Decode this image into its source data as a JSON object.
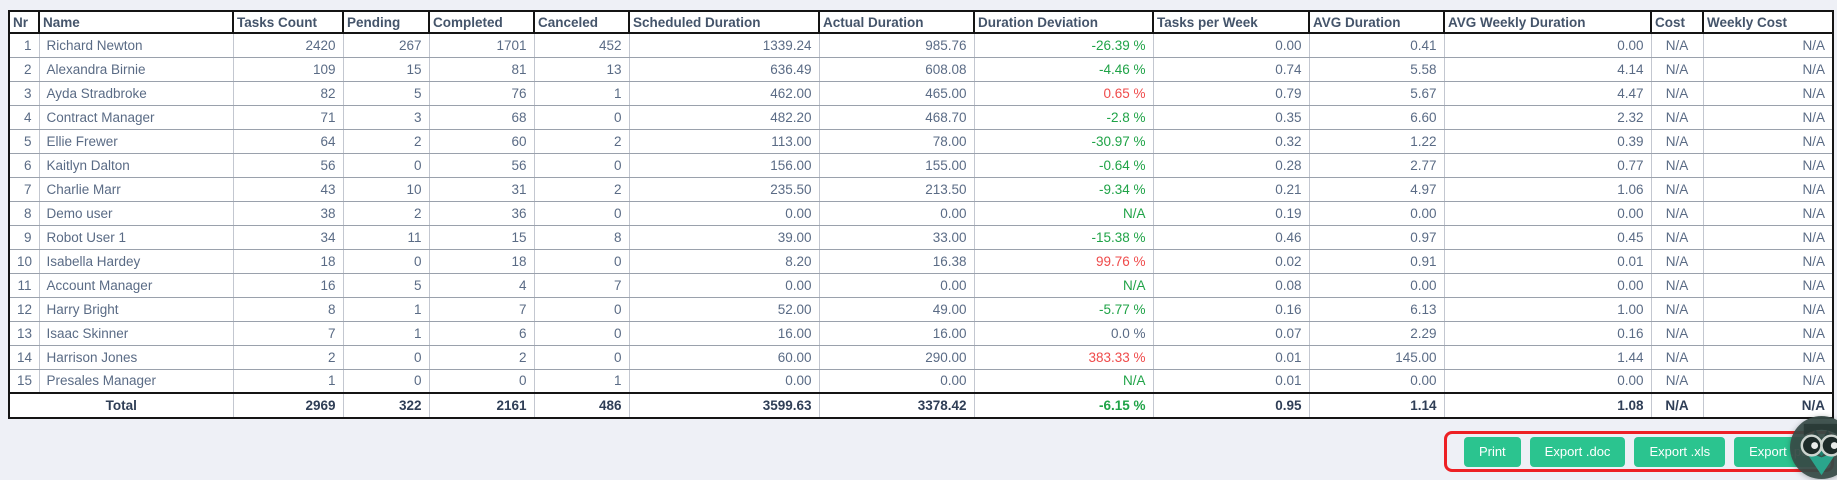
{
  "table": {
    "columns": [
      {
        "key": "nr",
        "label": "Nr",
        "align": "right"
      },
      {
        "key": "name",
        "label": "Name",
        "align": "left"
      },
      {
        "key": "tasks_count",
        "label": "Tasks Count",
        "align": "right"
      },
      {
        "key": "pending",
        "label": "Pending",
        "align": "right"
      },
      {
        "key": "completed",
        "label": "Completed",
        "align": "right"
      },
      {
        "key": "canceled",
        "label": "Canceled",
        "align": "right"
      },
      {
        "key": "scheduled_duration",
        "label": "Scheduled Duration",
        "align": "right"
      },
      {
        "key": "actual_duration",
        "label": "Actual Duration",
        "align": "right"
      },
      {
        "key": "duration_deviation",
        "label": "Duration Deviation",
        "align": "right"
      },
      {
        "key": "tasks_per_week",
        "label": "Tasks per Week",
        "align": "right"
      },
      {
        "key": "avg_duration",
        "label": "AVG Duration",
        "align": "right"
      },
      {
        "key": "avg_weekly_duration",
        "label": "AVG Weekly Duration",
        "align": "right"
      },
      {
        "key": "cost",
        "label": "Cost",
        "align": "center"
      },
      {
        "key": "weekly_cost",
        "label": "Weekly Cost",
        "align": "right"
      }
    ],
    "rows": [
      {
        "nr": "1",
        "name": "Richard Newton",
        "tasks_count": "2420",
        "pending": "267",
        "completed": "1701",
        "canceled": "452",
        "scheduled_duration": "1339.24",
        "actual_duration": "985.76",
        "duration_deviation": "-26.39 %",
        "deviation_color": "green",
        "tasks_per_week": "0.00",
        "avg_duration": "0.41",
        "avg_weekly_duration": "0.00",
        "cost": "N/A",
        "weekly_cost": "N/A"
      },
      {
        "nr": "2",
        "name": "Alexandra Birnie",
        "tasks_count": "109",
        "pending": "15",
        "completed": "81",
        "canceled": "13",
        "scheduled_duration": "636.49",
        "actual_duration": "608.08",
        "duration_deviation": "-4.46 %",
        "deviation_color": "green",
        "tasks_per_week": "0.74",
        "avg_duration": "5.58",
        "avg_weekly_duration": "4.14",
        "cost": "N/A",
        "weekly_cost": "N/A"
      },
      {
        "nr": "3",
        "name": "Ayda Stradbroke",
        "tasks_count": "82",
        "pending": "5",
        "completed": "76",
        "canceled": "1",
        "scheduled_duration": "462.00",
        "actual_duration": "465.00",
        "duration_deviation": "0.65 %",
        "deviation_color": "red",
        "tasks_per_week": "0.79",
        "avg_duration": "5.67",
        "avg_weekly_duration": "4.47",
        "cost": "N/A",
        "weekly_cost": "N/A"
      },
      {
        "nr": "4",
        "name": "Contract Manager",
        "tasks_count": "71",
        "pending": "3",
        "completed": "68",
        "canceled": "0",
        "scheduled_duration": "482.20",
        "actual_duration": "468.70",
        "duration_deviation": "-2.8 %",
        "deviation_color": "green",
        "tasks_per_week": "0.35",
        "avg_duration": "6.60",
        "avg_weekly_duration": "2.32",
        "cost": "N/A",
        "weekly_cost": "N/A"
      },
      {
        "nr": "5",
        "name": "Ellie Frewer",
        "tasks_count": "64",
        "pending": "2",
        "completed": "60",
        "canceled": "2",
        "scheduled_duration": "113.00",
        "actual_duration": "78.00",
        "duration_deviation": "-30.97 %",
        "deviation_color": "green",
        "tasks_per_week": "0.32",
        "avg_duration": "1.22",
        "avg_weekly_duration": "0.39",
        "cost": "N/A",
        "weekly_cost": "N/A"
      },
      {
        "nr": "6",
        "name": "Kaitlyn Dalton",
        "tasks_count": "56",
        "pending": "0",
        "completed": "56",
        "canceled": "0",
        "scheduled_duration": "156.00",
        "actual_duration": "155.00",
        "duration_deviation": "-0.64 %",
        "deviation_color": "green",
        "tasks_per_week": "0.28",
        "avg_duration": "2.77",
        "avg_weekly_duration": "0.77",
        "cost": "N/A",
        "weekly_cost": "N/A"
      },
      {
        "nr": "7",
        "name": "Charlie Marr",
        "tasks_count": "43",
        "pending": "10",
        "completed": "31",
        "canceled": "2",
        "scheduled_duration": "235.50",
        "actual_duration": "213.50",
        "duration_deviation": "-9.34 %",
        "deviation_color": "green",
        "tasks_per_week": "0.21",
        "avg_duration": "4.97",
        "avg_weekly_duration": "1.06",
        "cost": "N/A",
        "weekly_cost": "N/A"
      },
      {
        "nr": "8",
        "name": "Demo user",
        "tasks_count": "38",
        "pending": "2",
        "completed": "36",
        "canceled": "0",
        "scheduled_duration": "0.00",
        "actual_duration": "0.00",
        "duration_deviation": "N/A",
        "deviation_color": "green",
        "tasks_per_week": "0.19",
        "avg_duration": "0.00",
        "avg_weekly_duration": "0.00",
        "cost": "N/A",
        "weekly_cost": "N/A"
      },
      {
        "nr": "9",
        "name": "Robot User 1",
        "tasks_count": "34",
        "pending": "11",
        "completed": "15",
        "canceled": "8",
        "scheduled_duration": "39.00",
        "actual_duration": "33.00",
        "duration_deviation": "-15.38 %",
        "deviation_color": "green",
        "tasks_per_week": "0.46",
        "avg_duration": "0.97",
        "avg_weekly_duration": "0.45",
        "cost": "N/A",
        "weekly_cost": "N/A"
      },
      {
        "nr": "10",
        "name": "Isabella Hardey",
        "tasks_count": "18",
        "pending": "0",
        "completed": "18",
        "canceled": "0",
        "scheduled_duration": "8.20",
        "actual_duration": "16.38",
        "duration_deviation": "99.76 %",
        "deviation_color": "red",
        "tasks_per_week": "0.02",
        "avg_duration": "0.91",
        "avg_weekly_duration": "0.01",
        "cost": "N/A",
        "weekly_cost": "N/A"
      },
      {
        "nr": "11",
        "name": "Account Manager",
        "tasks_count": "16",
        "pending": "5",
        "completed": "4",
        "canceled": "7",
        "scheduled_duration": "0.00",
        "actual_duration": "0.00",
        "duration_deviation": "N/A",
        "deviation_color": "green",
        "tasks_per_week": "0.08",
        "avg_duration": "0.00",
        "avg_weekly_duration": "0.00",
        "cost": "N/A",
        "weekly_cost": "N/A"
      },
      {
        "nr": "12",
        "name": "Harry Bright",
        "tasks_count": "8",
        "pending": "1",
        "completed": "7",
        "canceled": "0",
        "scheduled_duration": "52.00",
        "actual_duration": "49.00",
        "duration_deviation": "-5.77 %",
        "deviation_color": "green",
        "tasks_per_week": "0.16",
        "avg_duration": "6.13",
        "avg_weekly_duration": "1.00",
        "cost": "N/A",
        "weekly_cost": "N/A"
      },
      {
        "nr": "13",
        "name": "Isaac Skinner",
        "tasks_count": "7",
        "pending": "1",
        "completed": "6",
        "canceled": "0",
        "scheduled_duration": "16.00",
        "actual_duration": "16.00",
        "duration_deviation": "0.0 %",
        "deviation_color": "neutral",
        "tasks_per_week": "0.07",
        "avg_duration": "2.29",
        "avg_weekly_duration": "0.16",
        "cost": "N/A",
        "weekly_cost": "N/A"
      },
      {
        "nr": "14",
        "name": "Harrison Jones",
        "tasks_count": "2",
        "pending": "0",
        "completed": "2",
        "canceled": "0",
        "scheduled_duration": "60.00",
        "actual_duration": "290.00",
        "duration_deviation": "383.33 %",
        "deviation_color": "red",
        "tasks_per_week": "0.01",
        "avg_duration": "145.00",
        "avg_weekly_duration": "1.44",
        "cost": "N/A",
        "weekly_cost": "N/A"
      },
      {
        "nr": "15",
        "name": "Presales Manager",
        "tasks_count": "1",
        "pending": "0",
        "completed": "0",
        "canceled": "1",
        "scheduled_duration": "0.00",
        "actual_duration": "0.00",
        "duration_deviation": "N/A",
        "deviation_color": "green",
        "tasks_per_week": "0.01",
        "avg_duration": "0.00",
        "avg_weekly_duration": "0.00",
        "cost": "N/A",
        "weekly_cost": "N/A"
      }
    ],
    "total": {
      "label": "Total",
      "tasks_count": "2969",
      "pending": "322",
      "completed": "2161",
      "canceled": "486",
      "scheduled_duration": "3599.63",
      "actual_duration": "3378.42",
      "duration_deviation": "-6.15 %",
      "deviation_color": "green",
      "tasks_per_week": "0.95",
      "avg_duration": "1.14",
      "avg_weekly_duration": "1.08",
      "cost": "N/A",
      "weekly_cost": "N/A"
    }
  },
  "toolbar": {
    "buttons": [
      {
        "label": "Print"
      },
      {
        "label": "Export .doc"
      },
      {
        "label": "Export .xls"
      },
      {
        "label": "Export .pdf"
      }
    ]
  },
  "colors": {
    "button_green": "#2bc48f",
    "highlight_red": "#ed2024",
    "deviation_green": "#1fa347",
    "deviation_red": "#ef4b4b",
    "header_text": "#44546a",
    "cell_text": "#5a6b85",
    "page_background": "#eef0f6"
  }
}
